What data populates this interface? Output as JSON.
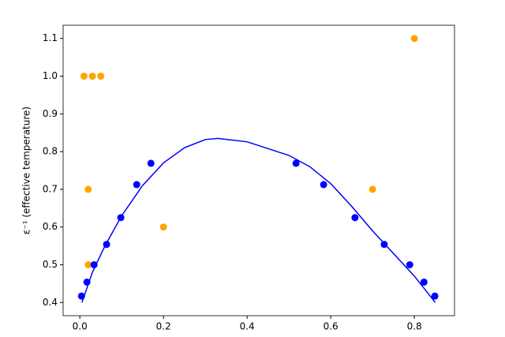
{
  "chart_data": {
    "type": "scatter",
    "ylabel": "ε⁻¹ (effective temperature)",
    "xlim": [
      -0.04,
      0.896
    ],
    "ylim": [
      0.365,
      1.135
    ],
    "xticks": [
      {
        "value": 0,
        "label": "0.0"
      },
      0.2,
      0.4,
      0.6,
      0.8
    ],
    "yticks": [
      0.4,
      0.5,
      0.6,
      0.7,
      0.8,
      0.9,
      {
        "value": 1,
        "label": "1.0"
      },
      1.1
    ],
    "series": [
      {
        "color": "orange",
        "x": [
          0.01,
          0.03,
          0.05,
          0.02,
          0.02,
          0.2,
          0.7,
          0.8
        ],
        "values": [
          1.0,
          1.0,
          1.0,
          0.7,
          0.5,
          0.6,
          0.7,
          1.1
        ]
      },
      {
        "color": "blue",
        "x": [
          0.004,
          0.017,
          0.034,
          0.064,
          0.098,
          0.136,
          0.17,
          0.517,
          0.583,
          0.658,
          0.728,
          0.789,
          0.823,
          0.849
        ],
        "values": [
          0.417,
          0.454,
          0.5,
          0.554,
          0.625,
          0.7125,
          0.769,
          0.769,
          0.7125,
          0.625,
          0.554,
          0.5,
          0.454,
          0.417
        ]
      },
      {
        "type": "line",
        "color": "blue",
        "x": [
          0.005,
          0.03,
          0.06,
          0.1,
          0.15,
          0.2,
          0.25,
          0.3,
          0.33,
          0.4,
          0.5,
          0.55,
          0.6,
          0.65,
          0.7,
          0.75,
          0.8,
          0.85
        ],
        "values": [
          0.4,
          0.48,
          0.55,
          0.63,
          0.71,
          0.77,
          0.81,
          0.832,
          0.835,
          0.826,
          0.79,
          0.76,
          0.715,
          0.655,
          0.59,
          0.53,
          0.47,
          0.4
        ]
      }
    ]
  }
}
